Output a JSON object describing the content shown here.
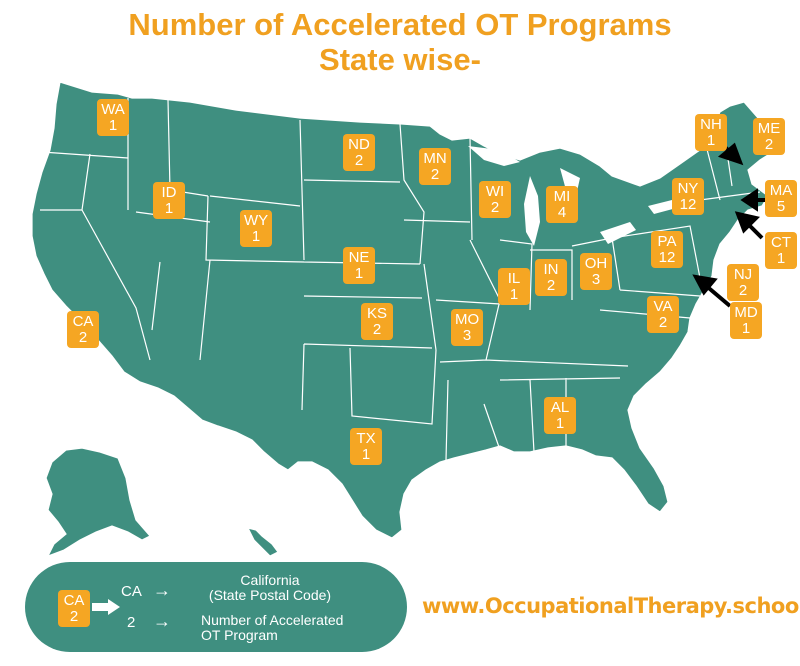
{
  "title_line1": "Number of Accelerated OT Programs",
  "title_line2": "State wise-",
  "colors": {
    "map_fill": "#3f8f80",
    "state_border": "#ffffff",
    "badge": "#f5a623",
    "title": "#f0a020",
    "arrow": "#000000"
  },
  "states": [
    {
      "code": "WA",
      "count": "1"
    },
    {
      "code": "ID",
      "count": "1"
    },
    {
      "code": "CA",
      "count": "2"
    },
    {
      "code": "WY",
      "count": "1"
    },
    {
      "code": "ND",
      "count": "2"
    },
    {
      "code": "MN",
      "count": "2"
    },
    {
      "code": "NE",
      "count": "1"
    },
    {
      "code": "KS",
      "count": "2"
    },
    {
      "code": "TX",
      "count": "1"
    },
    {
      "code": "MO",
      "count": "3"
    },
    {
      "code": "WI",
      "count": "2"
    },
    {
      "code": "MI",
      "count": "4"
    },
    {
      "code": "IL",
      "count": "1"
    },
    {
      "code": "IN",
      "count": "2"
    },
    {
      "code": "OH",
      "count": "3"
    },
    {
      "code": "AL",
      "count": "1"
    },
    {
      "code": "PA",
      "count": "12"
    },
    {
      "code": "NY",
      "count": "12"
    },
    {
      "code": "VA",
      "count": "2"
    },
    {
      "code": "NH",
      "count": "1"
    },
    {
      "code": "ME",
      "count": "2"
    },
    {
      "code": "MA",
      "count": "5"
    },
    {
      "code": "CT",
      "count": "1"
    },
    {
      "code": "NJ",
      "count": "2"
    },
    {
      "code": "MD",
      "count": "1"
    }
  ],
  "legend": {
    "example_code": "CA",
    "example_count": "2",
    "code_label": "CA",
    "code_desc_line1": "California",
    "code_desc_line2": "(State Postal Code)",
    "count_label": "2",
    "count_desc_line1": "Number of Accelerated",
    "count_desc_line2": "OT Program",
    "arrow_glyph": "→"
  },
  "website": "www.OccupationalTherapy.school"
}
